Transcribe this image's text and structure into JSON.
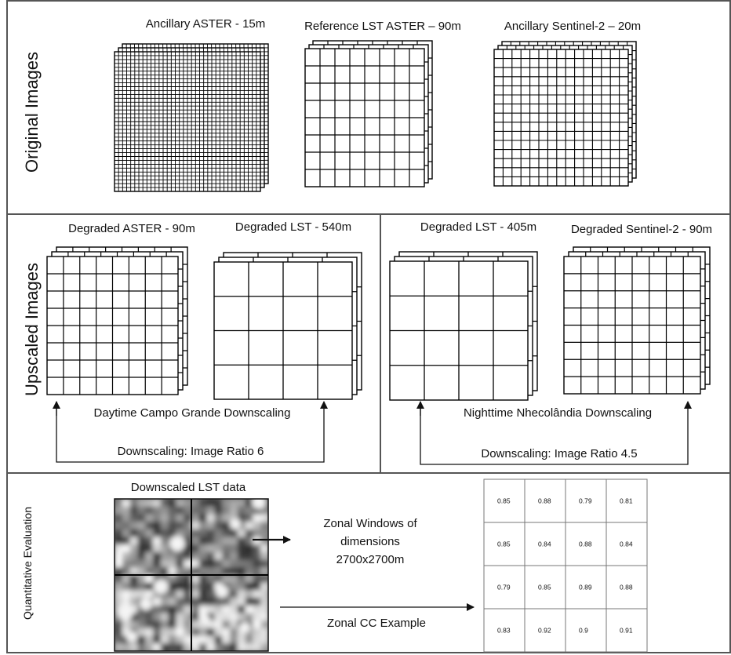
{
  "sections": {
    "original": {
      "heading": "Original Images",
      "images": [
        {
          "title": "Ancillary ASTER - 15m"
        },
        {
          "title": "Reference LST ASTER – 90m"
        },
        {
          "title": "Ancillary Sentinel-2 – 20m"
        }
      ]
    },
    "upscaled": {
      "heading": "Upscaled Images",
      "left": {
        "images": [
          {
            "title": "Degraded ASTER - 90m"
          },
          {
            "title": "Degraded LST - 540m"
          }
        ],
        "caption": "Daytime Campo Grande Downscaling",
        "ratio_label": "Downscaling: Image Ratio 6"
      },
      "right": {
        "images": [
          {
            "title": "Degraded LST - 405m"
          },
          {
            "title": "Degraded Sentinel-2 - 90m"
          }
        ],
        "caption": "Nighttime Nhecolândia Downscaling",
        "ratio_label": "Downscaling: Image Ratio 4.5"
      }
    },
    "evaluation": {
      "heading": "Quantitative Evaluation",
      "lst_title": "Downscaled LST data",
      "zonal_windows_label": [
        "Zonal Windows of",
        "dimensions",
        "2700x2700m"
      ],
      "zonal_cc_label": "Zonal CC Example",
      "cc_values": [
        [
          "0.85",
          "0.88",
          "0.79",
          "0.81"
        ],
        [
          "0.85",
          "0.84",
          "0.88",
          "0.84"
        ],
        [
          "0.79",
          "0.85",
          "0.89",
          "0.88"
        ],
        [
          "0.83",
          "0.92",
          "0.9",
          "0.91"
        ]
      ]
    }
  }
}
